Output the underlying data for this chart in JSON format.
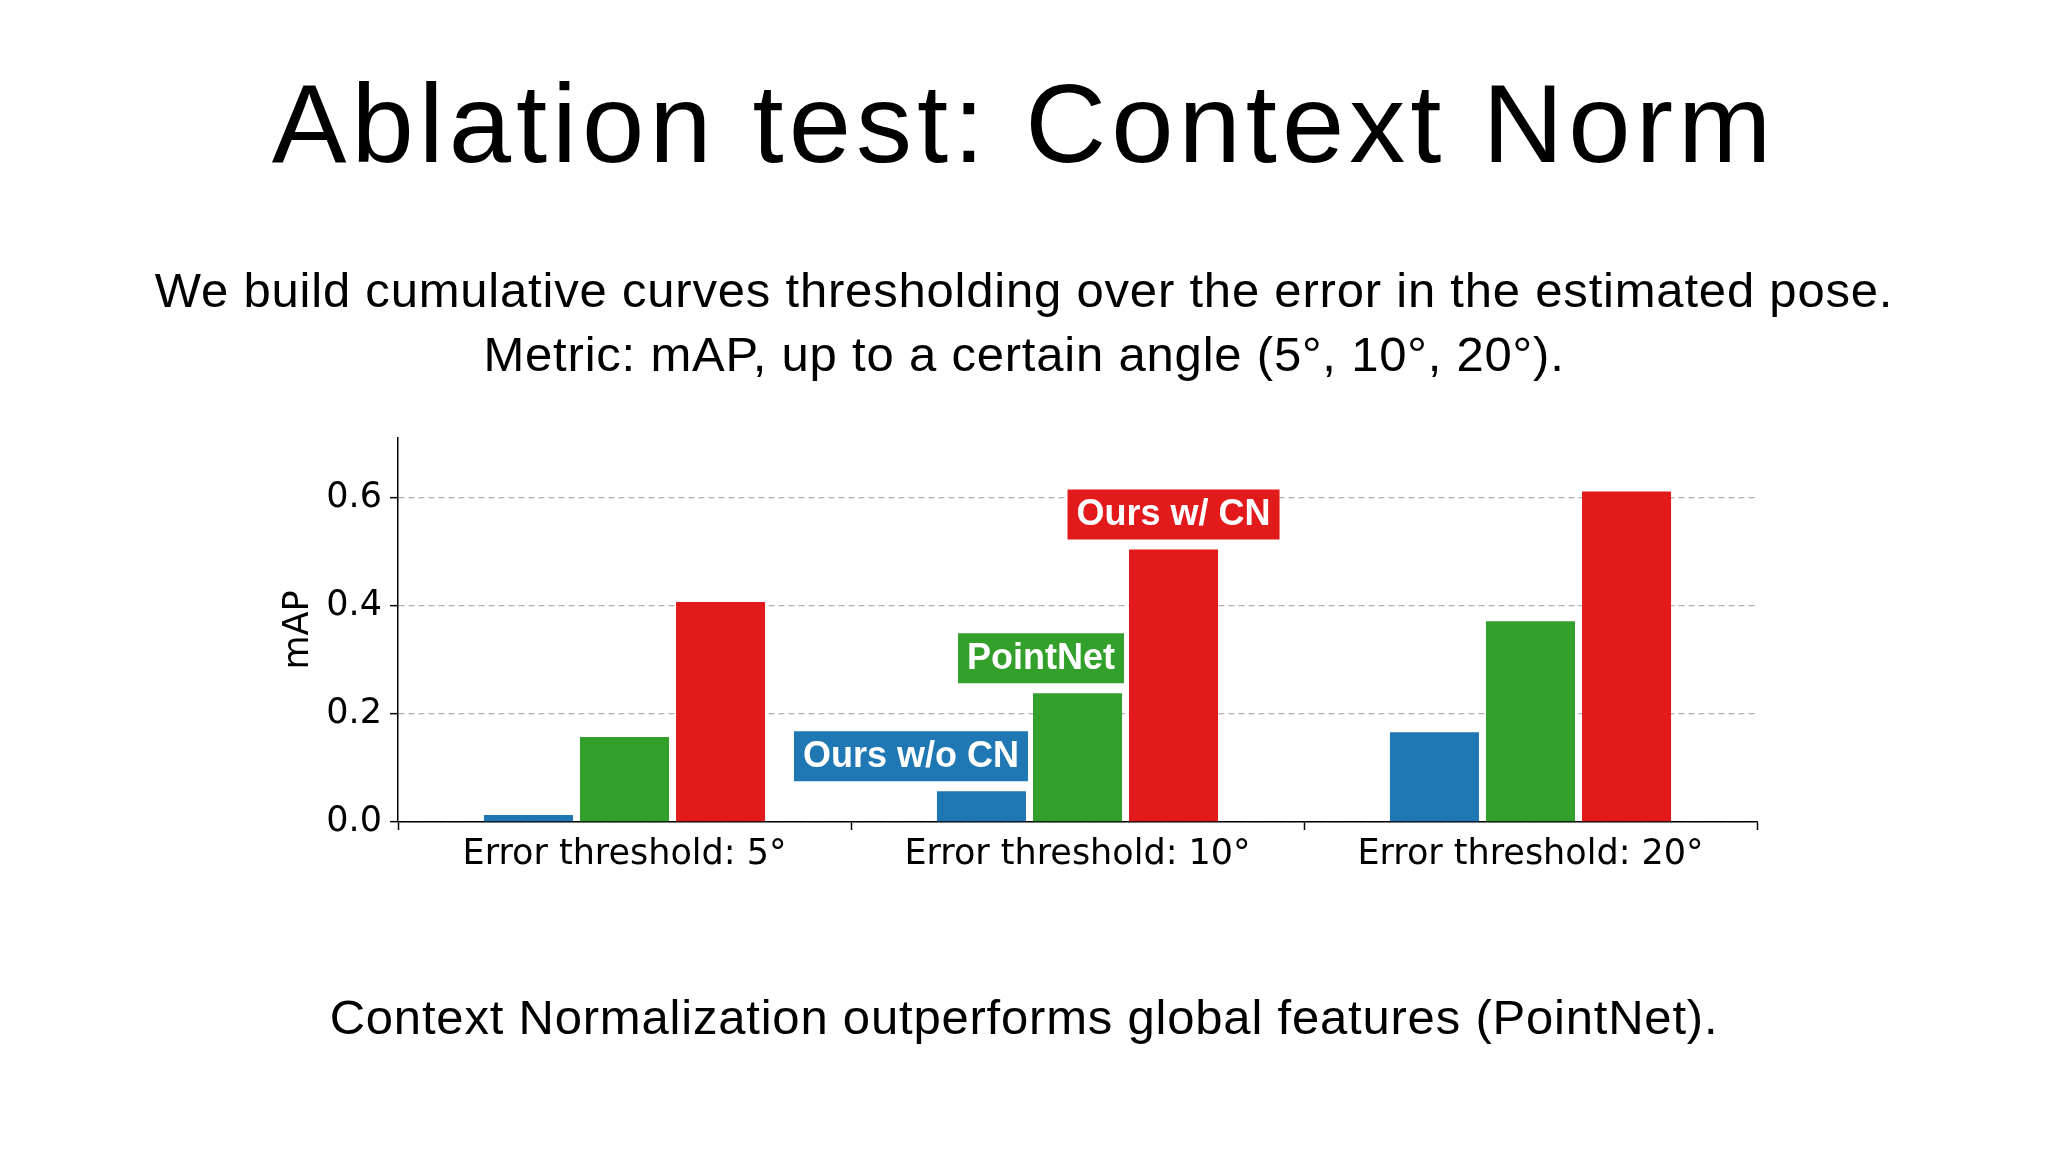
{
  "chart_data": {
    "type": "bar",
    "title": "Ablation test: Context Norm",
    "subtitle": "We build cumulative curves thresholding over the error in the estimated pose.\nMetric: mAP, up to a certain angle (5°, 10°, 20°).",
    "ylabel": "mAP",
    "categories": [
      "Error threshold: 5°",
      "Error threshold: 10°",
      "Error threshold: 20°"
    ],
    "series": [
      {
        "name": "Ours w/o CN",
        "color": "#1f78b4",
        "values": [
          0.013,
          0.057,
          0.166
        ]
      },
      {
        "name": "PointNet",
        "color": "#33a02c",
        "values": [
          0.157,
          0.238,
          0.371
        ]
      },
      {
        "name": "Ours w/ CN",
        "color": "#e31a1c",
        "values": [
          0.407,
          0.504,
          0.611
        ]
      }
    ],
    "ylim": [
      0,
      0.71
    ],
    "yticks": [
      {
        "value": 0,
        "label": "0.0"
      },
      0.2,
      0.4,
      0.6
    ],
    "grid": "y",
    "annotations": [
      "Context Normalization outperforms global features (PointNet)."
    ]
  }
}
